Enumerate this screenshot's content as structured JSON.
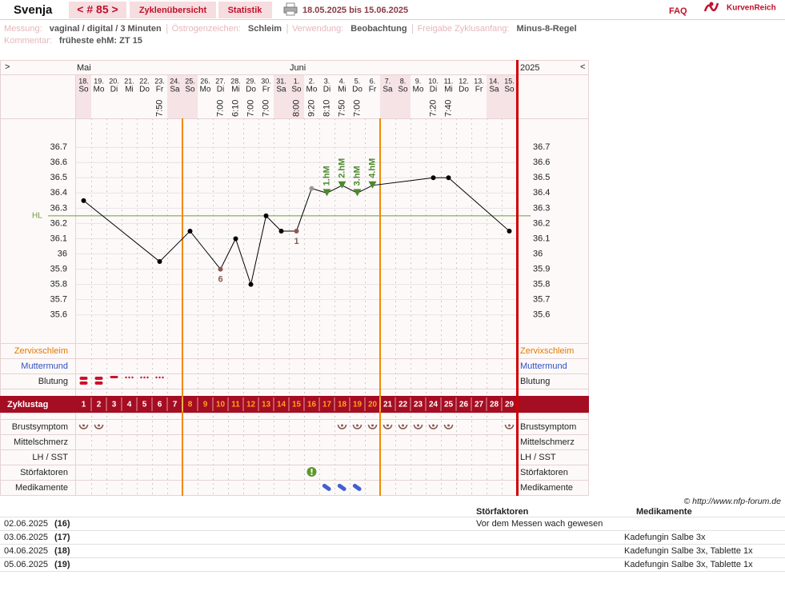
{
  "header": {
    "name": "Svenja",
    "cycle": "< # 85 >",
    "nav": [
      "Zyklenübersicht",
      "Statistik"
    ],
    "date_range": "18.05.2025 bis 15.06.2025",
    "faq": "FAQ",
    "brand": "KurvenReich"
  },
  "info": {
    "fields": [
      {
        "label": "Messung:",
        "value": "vaginal / digital / 3 Minuten"
      },
      {
        "label": "Östrogenzeichen:",
        "value": "Schleim"
      },
      {
        "label": "Verwendung:",
        "value": "Beobachtung"
      },
      {
        "label": "Freigabe Zyklusanfang:",
        "value": "Minus-8-Regel"
      }
    ],
    "comment": {
      "label": "Kommentar:",
      "value": "früheste ehM: ZT 15"
    }
  },
  "chart_data": {
    "type": "line",
    "nav_prev": ">",
    "nav_next": "<",
    "year": "2025",
    "months": [
      "Mai",
      null,
      null,
      null,
      null,
      null,
      null,
      null,
      null,
      null,
      null,
      null,
      null,
      null,
      "Juni",
      null,
      null,
      null,
      null,
      null,
      null,
      null,
      null,
      null,
      null,
      null,
      null,
      null,
      null
    ],
    "dates": [
      "18.",
      "19.",
      "20.",
      "21.",
      "22.",
      "23.",
      "24.",
      "25.",
      "26.",
      "27.",
      "28.",
      "29.",
      "30.",
      "31.",
      "1.",
      "2.",
      "3.",
      "4.",
      "5.",
      "6.",
      "7.",
      "8.",
      "9.",
      "10.",
      "11.",
      "12.",
      "13.",
      "14.",
      "15."
    ],
    "weekdays": [
      "So",
      "Mo",
      "Di",
      "Mi",
      "Do",
      "Fr",
      "Sa",
      "So",
      "Mo",
      "Di",
      "Mi",
      "Do",
      "Fr",
      "Sa",
      "So",
      "Mo",
      "Di",
      "Mi",
      "Do",
      "Fr",
      "Sa",
      "So",
      "Mo",
      "Di",
      "Mi",
      "Do",
      "Fr",
      "Sa",
      "So"
    ],
    "times": [
      null,
      null,
      null,
      null,
      null,
      "7:50",
      null,
      null,
      null,
      "7:00",
      "6:10",
      "7:00",
      "7:00",
      null,
      "8:00",
      "9:20",
      "8:10",
      "7:50",
      "7:00",
      null,
      null,
      null,
      null,
      "7:20",
      "7:40",
      null,
      null,
      null,
      null
    ],
    "cycle_day_label": "Zyklustag",
    "cycle_days": [
      1,
      2,
      3,
      4,
      5,
      6,
      7,
      8,
      9,
      10,
      11,
      12,
      13,
      14,
      15,
      16,
      17,
      18,
      19,
      20,
      21,
      22,
      23,
      24,
      25,
      26,
      27,
      28,
      29
    ],
    "x": [
      1,
      6,
      8,
      10,
      11,
      12,
      13,
      14,
      15,
      16,
      17,
      18,
      19,
      20,
      24,
      25,
      29
    ],
    "values": [
      36.35,
      35.95,
      36.15,
      35.9,
      36.1,
      35.8,
      36.25,
      36.15,
      36.15,
      36.43,
      36.4,
      36.45,
      36.4,
      36.45,
      36.5,
      36.5,
      36.15
    ],
    "point_colors": [
      "#000",
      "#000",
      "#000",
      "#8a5a52",
      "#000",
      "#000",
      "#000",
      "#000",
      "#8a5a52",
      "#999",
      "#000",
      "#000",
      "#000",
      "#000",
      "#000",
      "#000",
      "#000"
    ],
    "point_labels": [
      null,
      null,
      null,
      "6",
      null,
      null,
      null,
      null,
      "1",
      null,
      null,
      null,
      null,
      null,
      null,
      null,
      null
    ],
    "hm_labels": [
      null,
      null,
      null,
      null,
      null,
      null,
      null,
      null,
      null,
      null,
      "1.hM",
      "2.hM",
      "3.hM",
      "4.hM",
      null,
      null,
      null
    ],
    "color": "#000000",
    "hl": {
      "value": 36.25,
      "label": "HL",
      "color": "#6a9a3a"
    },
    "xlim": [
      0.5,
      29.5
    ],
    "ylim": [
      35.42,
      36.89
    ],
    "yticks": [
      35.6,
      35.7,
      35.8,
      35.9,
      36,
      36.1,
      36.2,
      36.3,
      36.4,
      36.5,
      36.6,
      36.7
    ],
    "grid": true,
    "rows_above": [
      "Zervixschleim",
      "Muttermund",
      "Blutung"
    ],
    "rows_below": [
      "Brustsymptom",
      "Mittelschmerz",
      "LH / SST",
      "Störfaktoren",
      "Medikamente"
    ]
  },
  "credit": "© http://www.nfp-forum.de",
  "table": {
    "headers": [
      "Störfaktoren",
      "Medikamente"
    ],
    "rows": [
      [
        "02.06.2025",
        "(16)",
        "Vor dem Messen wach gewesen",
        null
      ],
      [
        "03.06.2025",
        "(17)",
        null,
        "Kadefungin Salbe 3x"
      ],
      [
        "04.06.2025",
        "(18)",
        null,
        "Kadefungin Salbe 3x, Tablette 1x"
      ],
      [
        "05.06.2025",
        "(19)",
        null,
        "Kadefungin Salbe 3x, Tablette 1x"
      ]
    ]
  }
}
